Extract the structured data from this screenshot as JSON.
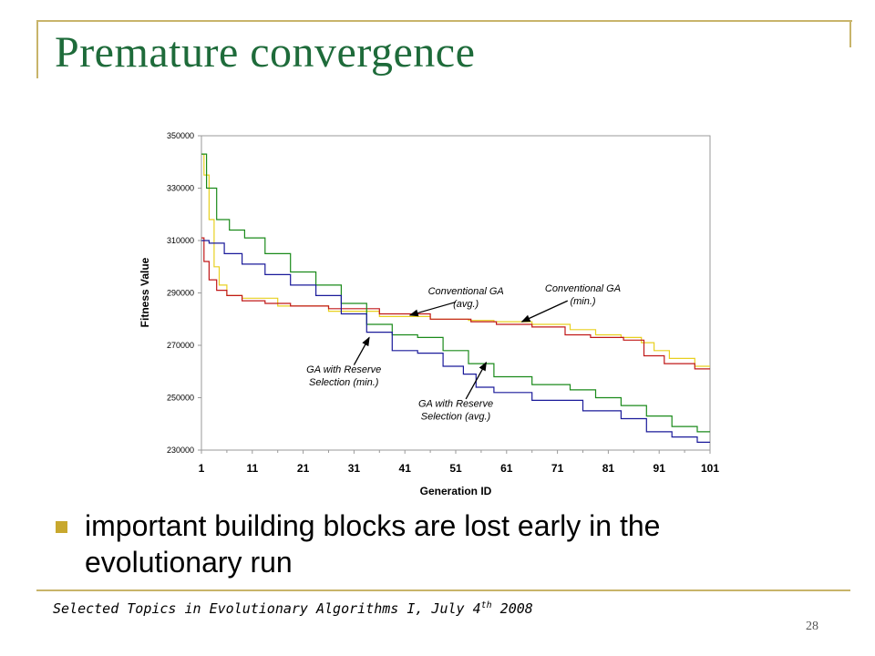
{
  "slide": {
    "title": "Premature convergence",
    "bullet": "important building blocks are lost early in the evolutionary run",
    "footer_main": "Selected Topics in Evolutionary Algorithms I, July 4",
    "footer_sup": "th",
    "footer_year": " 2008",
    "page_number": "28"
  },
  "colors": {
    "title": "#1e6b3a",
    "frame": "#c8b46a",
    "bullet": "#c8a82e"
  },
  "chart_data": {
    "type": "line",
    "title": "",
    "xlabel": "Generation ID",
    "ylabel": "Fitness Value",
    "xlim": [
      1,
      101
    ],
    "ylim": [
      230000,
      350000
    ],
    "xticks": [
      1,
      11,
      21,
      31,
      41,
      51,
      61,
      71,
      81,
      91,
      101
    ],
    "yticks": [
      230000,
      250000,
      270000,
      290000,
      310000,
      330000,
      350000
    ],
    "grid": false,
    "series": [
      {
        "color": "#e8d020",
        "points": [
          [
            1,
            343000
          ],
          [
            2,
            335000
          ],
          [
            3,
            318000
          ],
          [
            4,
            300000
          ],
          [
            5,
            293000
          ],
          [
            7,
            289000
          ],
          [
            11,
            288000
          ],
          [
            21,
            285000
          ],
          [
            31,
            283000
          ],
          [
            41,
            281000
          ],
          [
            51,
            280000
          ],
          [
            56,
            279500
          ],
          [
            61,
            279000
          ],
          [
            71,
            278000
          ],
          [
            76,
            276000
          ],
          [
            81,
            274000
          ],
          [
            86,
            273000
          ],
          [
            89,
            271000
          ],
          [
            91,
            268000
          ],
          [
            95,
            265000
          ],
          [
            101,
            262000
          ]
        ]
      },
      {
        "color": "#c01818",
        "points": [
          [
            1,
            311000
          ],
          [
            2,
            302000
          ],
          [
            3,
            295000
          ],
          [
            5,
            291000
          ],
          [
            7,
            289000
          ],
          [
            11,
            287000
          ],
          [
            16,
            286000
          ],
          [
            21,
            285000
          ],
          [
            31,
            284000
          ],
          [
            41,
            282000
          ],
          [
            51,
            280000
          ],
          [
            57,
            279000
          ],
          [
            61,
            278000
          ],
          [
            71,
            277000
          ],
          [
            74,
            274000
          ],
          [
            81,
            273000
          ],
          [
            87,
            272000
          ],
          [
            89,
            266000
          ],
          [
            95,
            263000
          ],
          [
            101,
            261000
          ]
        ]
      },
      {
        "color": "#1a8a1a",
        "points": [
          [
            1,
            343000
          ],
          [
            3,
            330000
          ],
          [
            5,
            318000
          ],
          [
            8,
            314000
          ],
          [
            11,
            311000
          ],
          [
            16,
            305000
          ],
          [
            21,
            298000
          ],
          [
            26,
            293000
          ],
          [
            31,
            286000
          ],
          [
            36,
            278000
          ],
          [
            41,
            274000
          ],
          [
            46,
            273000
          ],
          [
            51,
            268000
          ],
          [
            56,
            263000
          ],
          [
            61,
            258000
          ],
          [
            71,
            255000
          ],
          [
            76,
            253000
          ],
          [
            81,
            250000
          ],
          [
            86,
            247000
          ],
          [
            91,
            243000
          ],
          [
            96,
            239000
          ],
          [
            101,
            237000
          ]
        ]
      },
      {
        "color": "#1a1a9a",
        "points": [
          [
            1,
            310000
          ],
          [
            4,
            309000
          ],
          [
            7,
            305000
          ],
          [
            11,
            301000
          ],
          [
            16,
            297000
          ],
          [
            21,
            293000
          ],
          [
            26,
            289000
          ],
          [
            31,
            282000
          ],
          [
            36,
            275000
          ],
          [
            41,
            268000
          ],
          [
            46,
            267000
          ],
          [
            51,
            262000
          ],
          [
            54,
            259000
          ],
          [
            56,
            254000
          ],
          [
            61,
            252000
          ],
          [
            71,
            249000
          ],
          [
            81,
            245000
          ],
          [
            86,
            242000
          ],
          [
            91,
            237000
          ],
          [
            96,
            235000
          ],
          [
            101,
            233000
          ]
        ]
      }
    ],
    "annotations": [
      {
        "lines": [
          "Conventional GA",
          "(avg.)"
        ],
        "text_at": [
          53,
          289500
        ],
        "arrow_from": [
          51,
          286500
        ],
        "arrow_to": [
          42,
          281500
        ]
      },
      {
        "lines": [
          "Conventional GA",
          "(min.)"
        ],
        "text_at": [
          76,
          290500
        ],
        "arrow_from": [
          73,
          287000
        ],
        "arrow_to": [
          64,
          279000
        ]
      },
      {
        "lines": [
          "GA with Reserve",
          "Selection (min.)"
        ],
        "text_at": [
          29,
          259500
        ],
        "arrow_from": [
          31,
          262500
        ],
        "arrow_to": [
          34,
          273000
        ]
      },
      {
        "lines": [
          "GA with Reserve",
          "Selection (avg.)"
        ],
        "text_at": [
          51,
          246500
        ],
        "arrow_from": [
          53,
          249500
        ],
        "arrow_to": [
          57,
          263500
        ]
      }
    ]
  }
}
